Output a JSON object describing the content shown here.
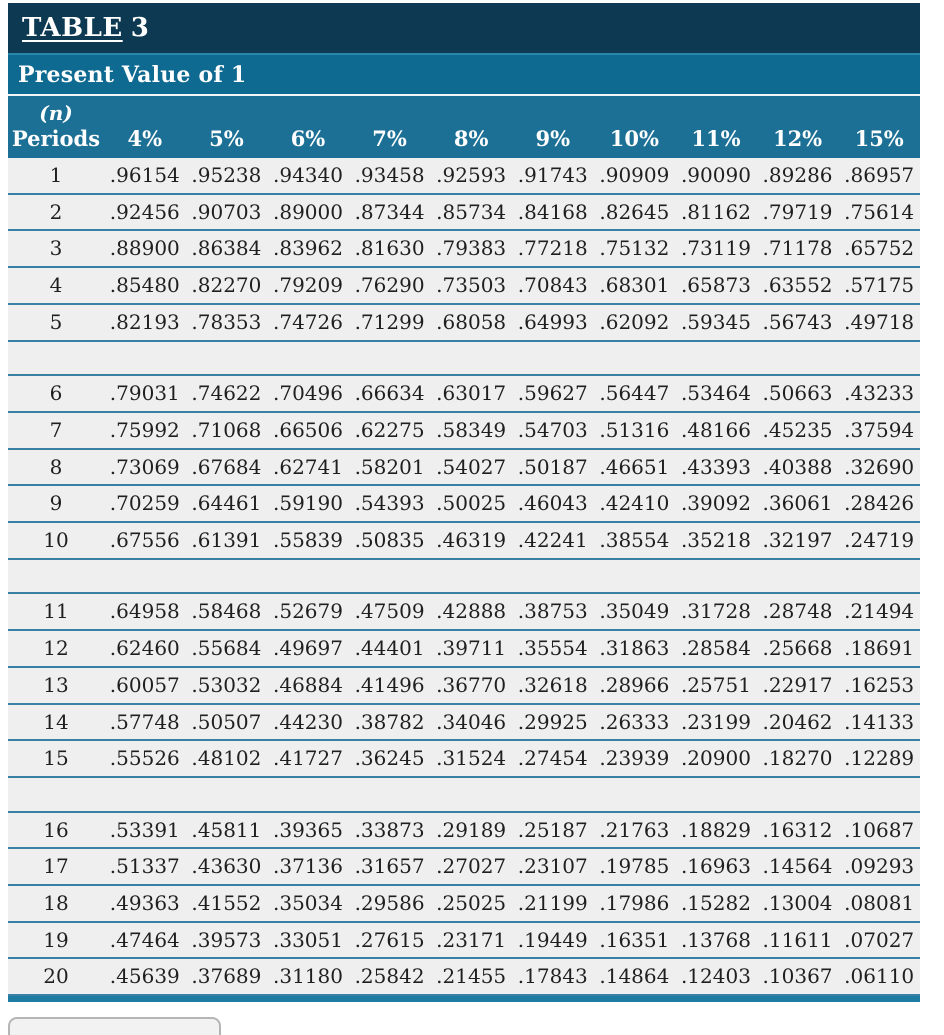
{
  "table": {
    "title_label": "TABLE",
    "title_number": "3",
    "subtitle": "Present Value of 1",
    "period_header_line1": "(n)",
    "period_header_line2": "Periods",
    "rate_headers": [
      "4%",
      "5%",
      "6%",
      "7%",
      "8%",
      "9%",
      "10%",
      "11%",
      "12%",
      "15%"
    ],
    "group_size": 5,
    "rows": [
      [
        "1",
        ".96154",
        ".95238",
        ".94340",
        ".93458",
        ".92593",
        ".91743",
        ".90909",
        ".90090",
        ".89286",
        ".86957"
      ],
      [
        "2",
        ".92456",
        ".90703",
        ".89000",
        ".87344",
        ".85734",
        ".84168",
        ".82645",
        ".81162",
        ".79719",
        ".75614"
      ],
      [
        "3",
        ".88900",
        ".86384",
        ".83962",
        ".81630",
        ".79383",
        ".77218",
        ".75132",
        ".73119",
        ".71178",
        ".65752"
      ],
      [
        "4",
        ".85480",
        ".82270",
        ".79209",
        ".76290",
        ".73503",
        ".70843",
        ".68301",
        ".65873",
        ".63552",
        ".57175"
      ],
      [
        "5",
        ".82193",
        ".78353",
        ".74726",
        ".71299",
        ".68058",
        ".64993",
        ".62092",
        ".59345",
        ".56743",
        ".49718"
      ],
      [
        "6",
        ".79031",
        ".74622",
        ".70496",
        ".66634",
        ".63017",
        ".59627",
        ".56447",
        ".53464",
        ".50663",
        ".43233"
      ],
      [
        "7",
        ".75992",
        ".71068",
        ".66506",
        ".62275",
        ".58349",
        ".54703",
        ".51316",
        ".48166",
        ".45235",
        ".37594"
      ],
      [
        "8",
        ".73069",
        ".67684",
        ".62741",
        ".58201",
        ".54027",
        ".50187",
        ".46651",
        ".43393",
        ".40388",
        ".32690"
      ],
      [
        "9",
        ".70259",
        ".64461",
        ".59190",
        ".54393",
        ".50025",
        ".46043",
        ".42410",
        ".39092",
        ".36061",
        ".28426"
      ],
      [
        "10",
        ".67556",
        ".61391",
        ".55839",
        ".50835",
        ".46319",
        ".42241",
        ".38554",
        ".35218",
        ".32197",
        ".24719"
      ],
      [
        "11",
        ".64958",
        ".58468",
        ".52679",
        ".47509",
        ".42888",
        ".38753",
        ".35049",
        ".31728",
        ".28748",
        ".21494"
      ],
      [
        "12",
        ".62460",
        ".55684",
        ".49697",
        ".44401",
        ".39711",
        ".35554",
        ".31863",
        ".28584",
        ".25668",
        ".18691"
      ],
      [
        "13",
        ".60057",
        ".53032",
        ".46884",
        ".41496",
        ".36770",
        ".32618",
        ".28966",
        ".25751",
        ".22917",
        ".16253"
      ],
      [
        "14",
        ".57748",
        ".50507",
        ".44230",
        ".38782",
        ".34046",
        ".29925",
        ".26333",
        ".23199",
        ".20462",
        ".14133"
      ],
      [
        "15",
        ".55526",
        ".48102",
        ".41727",
        ".36245",
        ".31524",
        ".27454",
        ".23939",
        ".20900",
        ".18270",
        ".12289"
      ],
      [
        "16",
        ".53391",
        ".45811",
        ".39365",
        ".33873",
        ".29189",
        ".25187",
        ".21763",
        ".18829",
        ".16312",
        ".10687"
      ],
      [
        "17",
        ".51337",
        ".43630",
        ".37136",
        ".31657",
        ".27027",
        ".23107",
        ".19785",
        ".16963",
        ".14564",
        ".09293"
      ],
      [
        "18",
        ".49363",
        ".41552",
        ".35034",
        ".29586",
        ".25025",
        ".21199",
        ".17986",
        ".15282",
        ".13004",
        ".08081"
      ],
      [
        "19",
        ".47464",
        ".39573",
        ".33051",
        ".27615",
        ".23171",
        ".19449",
        ".16351",
        ".13768",
        ".11611",
        ".07027"
      ],
      [
        "20",
        ".45639",
        ".37689",
        ".31180",
        ".25842",
        ".21455",
        ".17843",
        ".14864",
        ".12403",
        ".10367",
        ".06110"
      ]
    ]
  },
  "colors": {
    "title-band": "#0d3a52",
    "subtitle-band": "#0f6a92",
    "header-band": "#1c7095",
    "row-bg": "#efeff0",
    "row-divider": "#3a80a6",
    "bottom-bar": "#1e7ba2",
    "header-text": "#ffffff",
    "cell-text": "#1f1f1f"
  }
}
